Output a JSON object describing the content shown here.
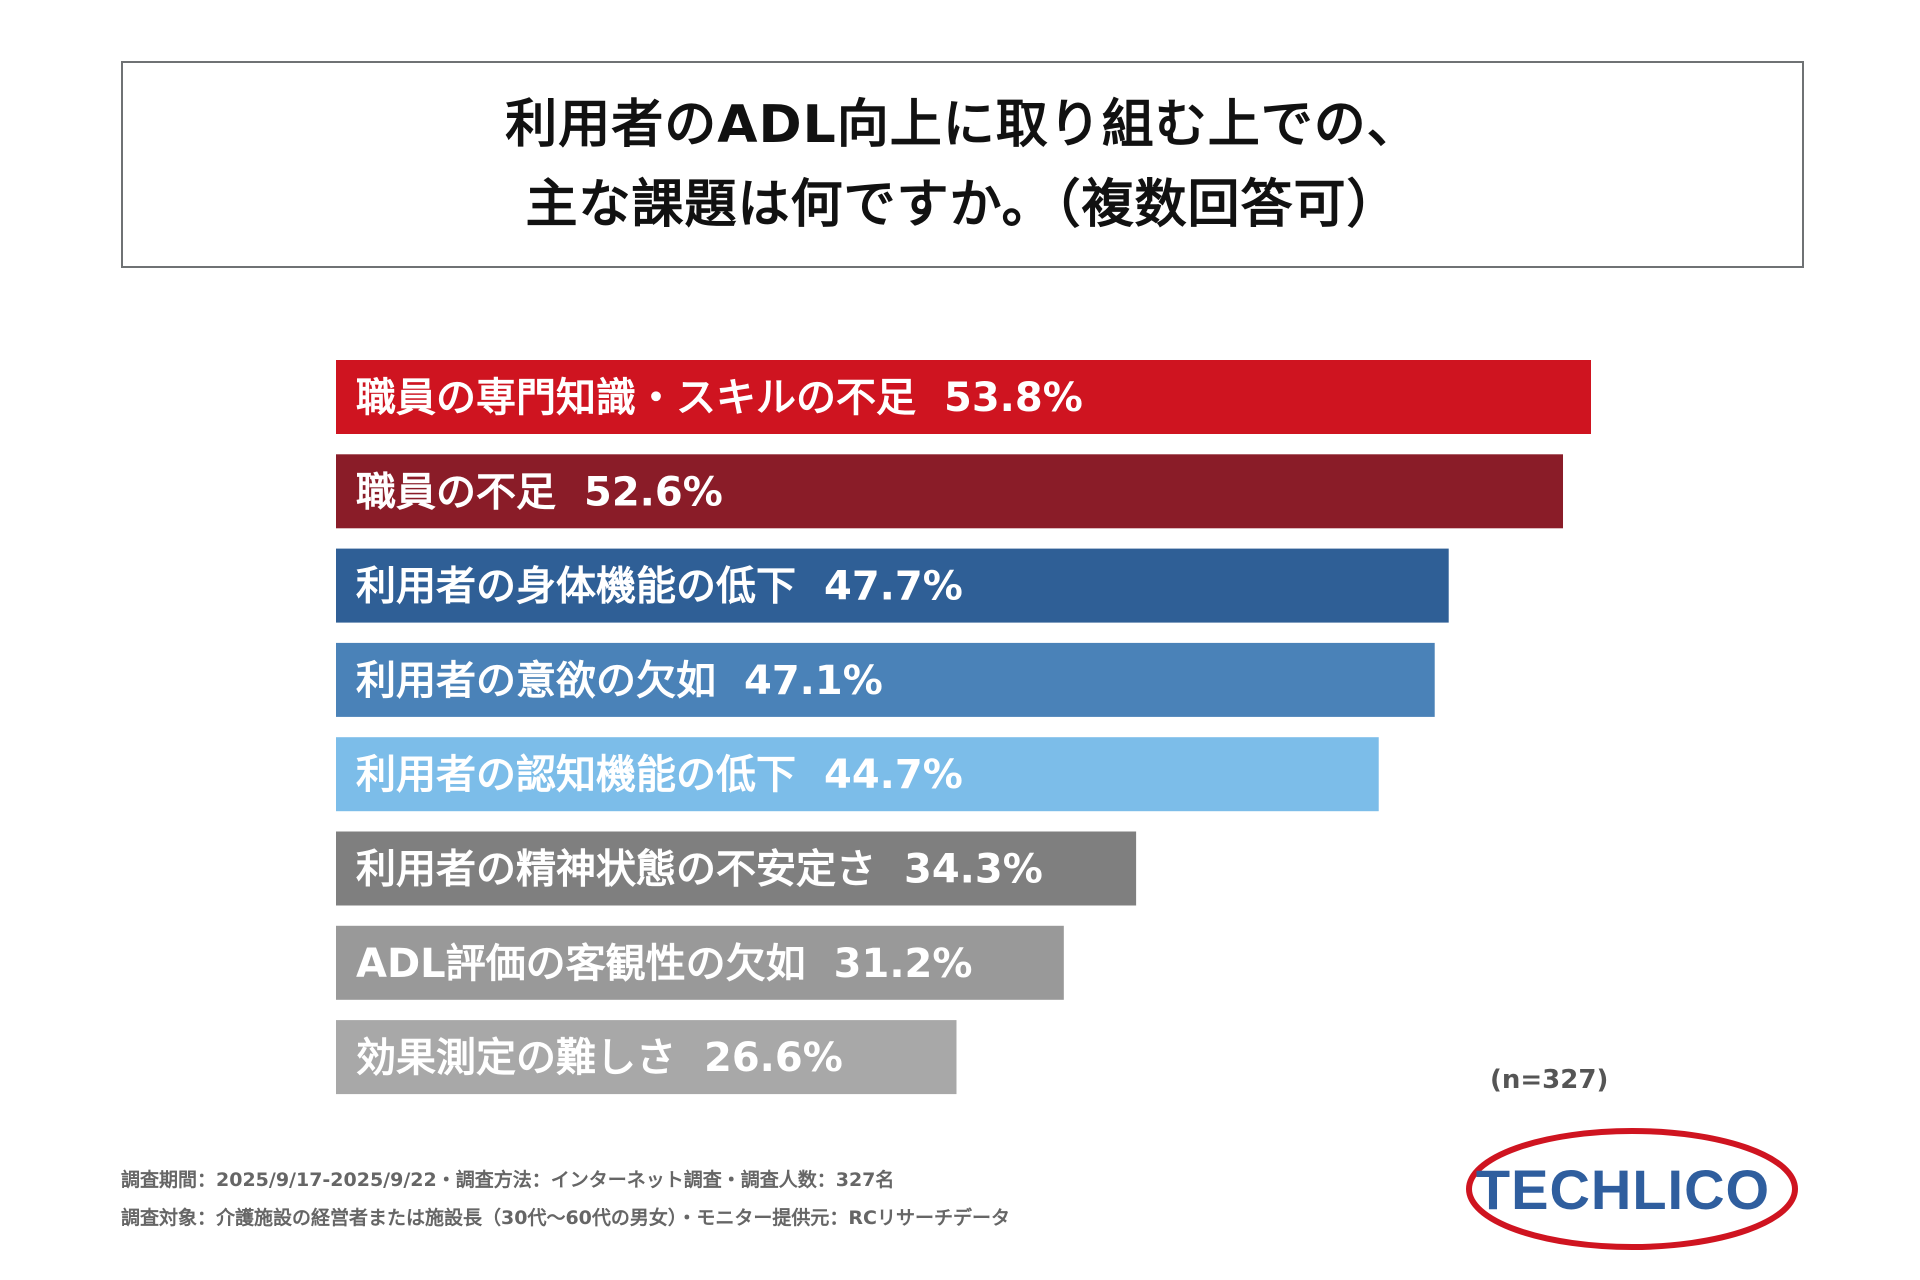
{
  "title": {
    "line1": "利用者のADL向上に取り組む上での、",
    "line2": "主な課題は何ですか。（複数回答可）"
  },
  "chart_data": {
    "type": "bar",
    "orientation": "horizontal",
    "title": "利用者のADL向上に取り組む上での、主な課題は何ですか。（複数回答可）",
    "unit": "%",
    "categories": [
      "職員の専門知識・スキルの不足",
      "職員の不足",
      "利用者の身体機能の低下",
      "利用者の意欲の欠如",
      "利用者の認知機能の低下",
      "利用者の精神状態の不安定さ",
      "ADL評価の客観性の欠如",
      "効果測定の難しさ"
    ],
    "values": [
      53.8,
      52.6,
      47.7,
      47.1,
      44.7,
      34.3,
      31.2,
      26.6
    ],
    "value_labels": [
      "53.8%",
      "52.6%",
      "47.7%",
      "47.1%",
      "44.7%",
      "34.3%",
      "31.2%",
      "26.6%"
    ],
    "colors": [
      "#cf1420",
      "#8a1c28",
      "#2f5f96",
      "#4a82b8",
      "#7cbde9",
      "#7f7f7f",
      "#999999",
      "#a8a8a8"
    ],
    "xlim": [
      0,
      53.8
    ],
    "grid": false,
    "sample_size": "(n=327)"
  },
  "footer": {
    "line1": "調査期間：2025/9/17-2025/9/22・調査方法：インターネット調査・調査人数：327名",
    "line2": "調査対象：介護施設の経営者または施設長（30代～60代の男女）・モニター提供元：RCリサーチデータ"
  },
  "logo": {
    "text": "TECHLICO",
    "ring_color": "#cf1420",
    "text_color": "#2f5e9e"
  }
}
